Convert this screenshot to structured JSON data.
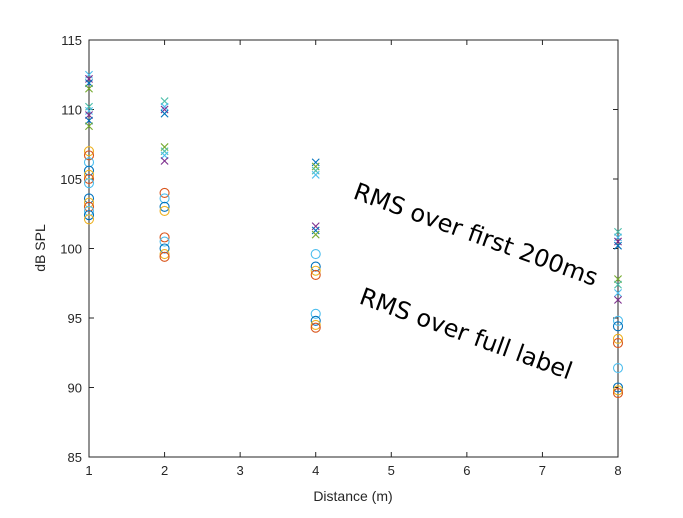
{
  "chart_data": {
    "type": "scatter",
    "xlabel": "Distance (m)",
    "ylabel": "dB SPL",
    "xlim": [
      1,
      8
    ],
    "ylim": [
      85,
      115
    ],
    "xticks": [
      1,
      2,
      3,
      4,
      5,
      6,
      7,
      8
    ],
    "yticks": [
      85,
      90,
      95,
      100,
      105,
      110,
      115
    ],
    "grid": false,
    "box": true,
    "annotations": [
      {
        "text": "RMS over first 200ms",
        "rotation_deg": 20
      },
      {
        "text": "RMS over full label",
        "rotation_deg": 20
      }
    ],
    "series": [
      {
        "marker": "x",
        "colors": [
          "#4DBEEE",
          "#7E2F8E",
          "#0072BD",
          "#77AC30",
          "#4DBEAA"
        ],
        "points": [
          {
            "x": 1,
            "y": 112.5
          },
          {
            "x": 1,
            "y": 112.2
          },
          {
            "x": 1,
            "y": 111.9
          },
          {
            "x": 1,
            "y": 111.5
          },
          {
            "x": 1,
            "y": 110.2
          },
          {
            "x": 1,
            "y": 109.9
          },
          {
            "x": 1,
            "y": 109.6
          },
          {
            "x": 1,
            "y": 109.2
          },
          {
            "x": 1,
            "y": 108.8
          },
          {
            "x": 2,
            "y": 110.6
          },
          {
            "x": 2,
            "y": 110.2
          },
          {
            "x": 2,
            "y": 110.0
          },
          {
            "x": 2,
            "y": 109.7
          },
          {
            "x": 2,
            "y": 107.3
          },
          {
            "x": 2,
            "y": 107.0
          },
          {
            "x": 2,
            "y": 106.7
          },
          {
            "x": 2,
            "y": 106.3
          },
          {
            "x": 4,
            "y": 106.2
          },
          {
            "x": 4,
            "y": 105.9
          },
          {
            "x": 4,
            "y": 105.6
          },
          {
            "x": 4,
            "y": 105.3
          },
          {
            "x": 4,
            "y": 101.6
          },
          {
            "x": 4,
            "y": 101.3
          },
          {
            "x": 4,
            "y": 101.0
          },
          {
            "x": 8,
            "y": 101.2
          },
          {
            "x": 8,
            "y": 100.8
          },
          {
            "x": 8,
            "y": 100.5
          },
          {
            "x": 8,
            "y": 100.2
          },
          {
            "x": 8,
            "y": 97.8
          },
          {
            "x": 8,
            "y": 97.4
          },
          {
            "x": 8,
            "y": 96.8
          },
          {
            "x": 8,
            "y": 96.3
          }
        ]
      },
      {
        "marker": "o",
        "colors": [
          "#EDB120",
          "#D95319",
          "#4DBEEE",
          "#0072BD"
        ],
        "points": [
          {
            "x": 1,
            "y": 107.0
          },
          {
            "x": 1,
            "y": 106.7
          },
          {
            "x": 1,
            "y": 106.2
          },
          {
            "x": 1,
            "y": 105.6
          },
          {
            "x": 1,
            "y": 105.3
          },
          {
            "x": 1,
            "y": 105.0
          },
          {
            "x": 1,
            "y": 104.7
          },
          {
            "x": 1,
            "y": 103.6
          },
          {
            "x": 1,
            "y": 103.3
          },
          {
            "x": 1,
            "y": 103.0
          },
          {
            "x": 1,
            "y": 102.7
          },
          {
            "x": 1,
            "y": 102.4
          },
          {
            "x": 1,
            "y": 102.1
          },
          {
            "x": 2,
            "y": 104.0
          },
          {
            "x": 2,
            "y": 103.6
          },
          {
            "x": 2,
            "y": 103.0
          },
          {
            "x": 2,
            "y": 102.7
          },
          {
            "x": 2,
            "y": 100.8
          },
          {
            "x": 2,
            "y": 100.5
          },
          {
            "x": 2,
            "y": 100.0
          },
          {
            "x": 2,
            "y": 99.6
          },
          {
            "x": 2,
            "y": 99.4
          },
          {
            "x": 4,
            "y": 99.6
          },
          {
            "x": 4,
            "y": 98.7
          },
          {
            "x": 4,
            "y": 98.4
          },
          {
            "x": 4,
            "y": 98.1
          },
          {
            "x": 4,
            "y": 95.3
          },
          {
            "x": 4,
            "y": 94.8
          },
          {
            "x": 4,
            "y": 94.5
          },
          {
            "x": 4,
            "y": 94.3
          },
          {
            "x": 8,
            "y": 94.8
          },
          {
            "x": 8,
            "y": 94.4
          },
          {
            "x": 8,
            "y": 93.5
          },
          {
            "x": 8,
            "y": 93.2
          },
          {
            "x": 8,
            "y": 91.4
          },
          {
            "x": 8,
            "y": 90.0
          },
          {
            "x": 8,
            "y": 89.8
          },
          {
            "x": 8,
            "y": 89.6
          }
        ]
      }
    ]
  }
}
